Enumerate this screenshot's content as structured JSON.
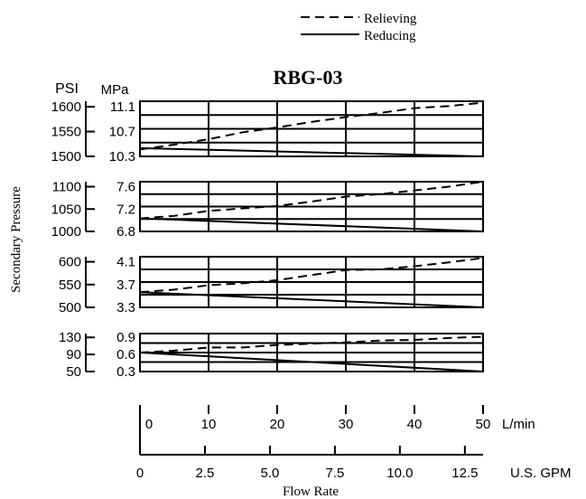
{
  "chart_data": {
    "type": "line",
    "title": "RBG-03",
    "legend": [
      {
        "name": "Relieving",
        "style": "dashed"
      },
      {
        "name": "Reducing",
        "style": "solid"
      }
    ],
    "legend_position": "top-right",
    "ylabel": "Secondary Pressure",
    "xlabel": "Flow Rate",
    "psi_label": "PSI",
    "mpa_label": "MPa",
    "x_lpm": {
      "unit": "L/min",
      "ticks": [
        "0",
        "10",
        "20",
        "30",
        "40",
        "50"
      ],
      "range": [
        0,
        50
      ]
    },
    "x_gpm": {
      "unit": "U.S. GPM",
      "ticks": [
        "0",
        "2.5",
        "5.0",
        "7.5",
        "10.0",
        "12.5"
      ],
      "range": [
        0,
        13.2
      ]
    },
    "grid": true,
    "panels": [
      {
        "mpa_ticks": [
          "11.1",
          "10.7",
          "10.3"
        ],
        "psi_ticks": [
          "1600",
          "1550",
          "1500"
        ],
        "ylim_mpa": [
          10.3,
          11.1
        ],
        "relieving": {
          "x": [
            0,
            5,
            10,
            15,
            20,
            25,
            30,
            35,
            40,
            45,
            50
          ],
          "y": [
            10.4,
            10.47,
            10.55,
            10.65,
            10.72,
            10.8,
            10.87,
            10.93,
            11.0,
            11.03,
            11.08
          ]
        },
        "reducing": {
          "x": [
            0,
            50
          ],
          "y": [
            10.42,
            10.3
          ]
        }
      },
      {
        "mpa_ticks": [
          "7.6",
          "7.2",
          "6.8"
        ],
        "psi_ticks": [
          "1100",
          "1050",
          "1000"
        ],
        "ylim_mpa": [
          6.8,
          7.6
        ],
        "relieving": {
          "x": [
            0,
            5,
            10,
            15,
            20,
            25,
            30,
            35,
            40,
            45,
            50
          ],
          "y": [
            7.01,
            7.05,
            7.13,
            7.17,
            7.21,
            7.28,
            7.36,
            7.4,
            7.46,
            7.52,
            7.6
          ]
        },
        "reducing": {
          "x": [
            0,
            50
          ],
          "y": [
            7.01,
            6.8
          ]
        }
      },
      {
        "mpa_ticks": [
          "4.1",
          "3.7",
          "3.3"
        ],
        "psi_ticks": [
          "600",
          "550",
          "500"
        ],
        "ylim_mpa": [
          3.3,
          4.1
        ],
        "relieving": {
          "x": [
            0,
            5,
            10,
            15,
            20,
            25,
            30,
            35,
            40,
            45,
            50
          ],
          "y": [
            3.54,
            3.58,
            3.65,
            3.68,
            3.73,
            3.81,
            3.89,
            3.9,
            3.95,
            4.01,
            4.08
          ]
        },
        "reducing": {
          "x": [
            0,
            50
          ],
          "y": [
            3.54,
            3.3
          ]
        }
      },
      {
        "mpa_ticks": [
          "0.9",
          "0.6",
          "0.3"
        ],
        "psi_ticks": [
          "130",
          "90",
          "50"
        ],
        "ylim_mpa": [
          0.3,
          0.9
        ],
        "relieving": {
          "x": [
            0,
            5,
            10,
            15,
            20,
            25,
            30,
            35,
            40,
            45,
            50
          ],
          "y": [
            0.6,
            0.63,
            0.68,
            0.68,
            0.72,
            0.74,
            0.76,
            0.79,
            0.8,
            0.83,
            0.85
          ]
        },
        "reducing": {
          "x": [
            0,
            50
          ],
          "y": [
            0.6,
            0.3
          ]
        }
      }
    ]
  }
}
